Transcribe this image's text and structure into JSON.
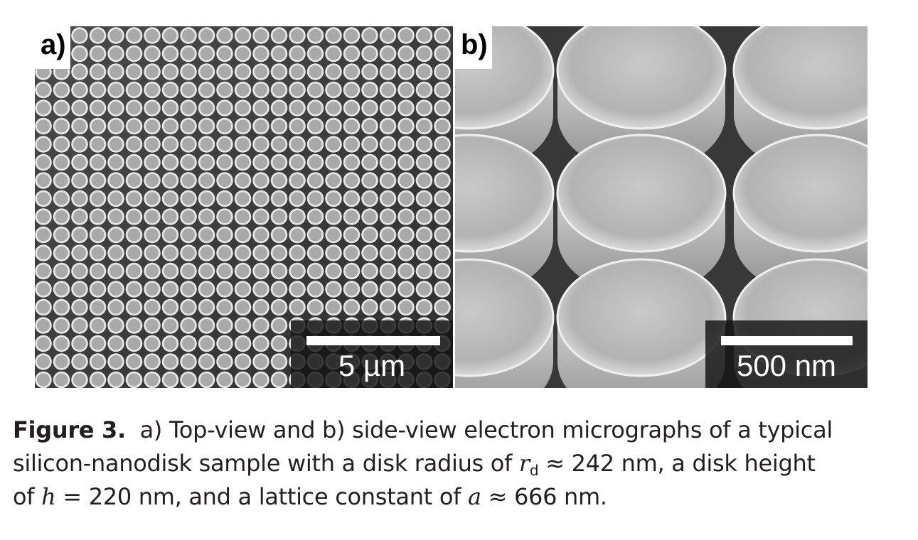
{
  "panel_a": {
    "label": "a)",
    "scale_bar": "5 µm"
  },
  "panel_b": {
    "label": "b)",
    "scale_bar": "500 nm"
  },
  "caption": {
    "figure_label": "Figure 3.",
    "line1_rest": "a) Top-view and b) side-view electron micrographs of a typical",
    "line2_pre": "silicon-nanodisk sample with a disk radius of ",
    "line2_var": "r",
    "line2_sub": "d",
    "line2_post": " ≈ 242 nm, a disk height",
    "line3_pre": "of ",
    "line3_var1": "h",
    "line3_mid": " = 220 nm, and a lattice constant of ",
    "line3_var2": "a",
    "line3_post": " ≈ 666 nm."
  }
}
